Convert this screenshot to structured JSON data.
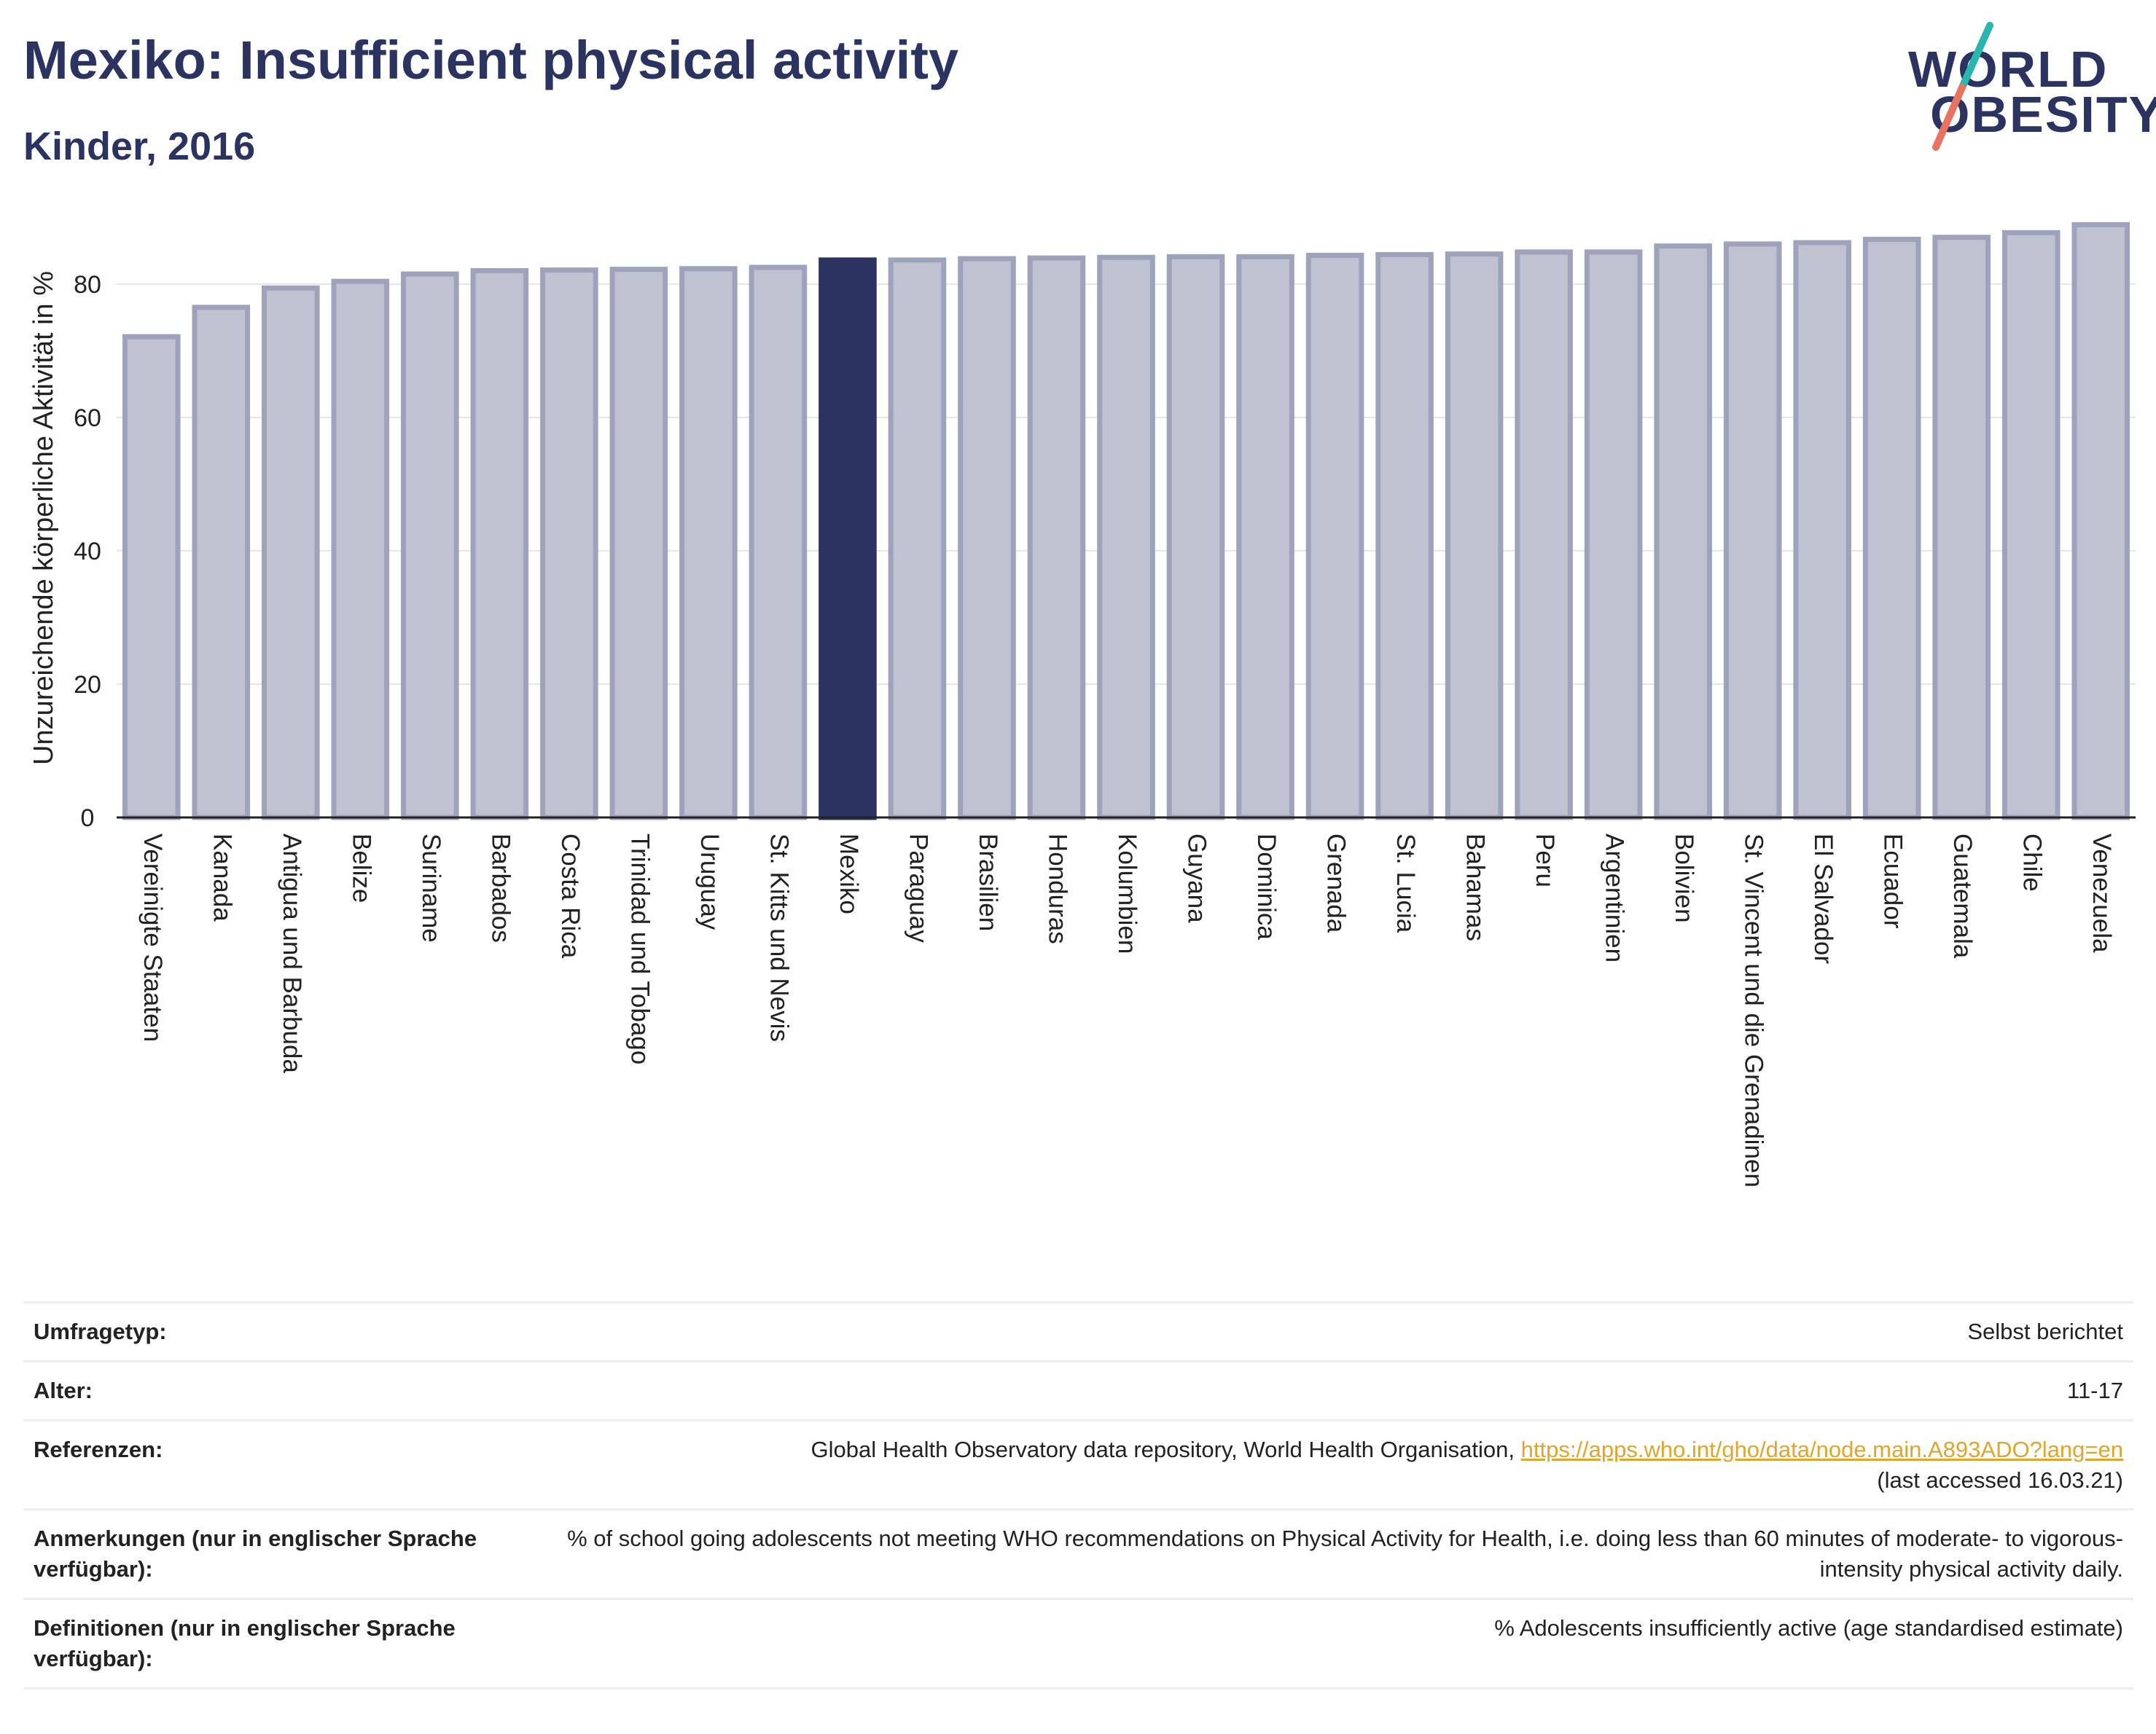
{
  "header": {
    "title": "Mexiko: Insufficient physical activity",
    "subtitle": "Kinder, 2016"
  },
  "logo": {
    "line1": "WORLD",
    "line2": "OBESITY",
    "colors": {
      "text": "#2b3461",
      "slash_top": "#2bb5b0",
      "slash_bottom": "#e8735e"
    }
  },
  "colors": {
    "bar": "#bfc2d0",
    "bar_outline": "#9ea2bb",
    "highlight": "#2b3461",
    "axis_text": "#222222",
    "grid": "#e5e5e5"
  },
  "chart_data": {
    "type": "bar",
    "title": "Mexiko: Insufficient physical activity",
    "subtitle": "Kinder, 2016",
    "xlabel": "",
    "ylabel": "Unzureichende körperliche Aktivität in %",
    "ylim": [
      0,
      92
    ],
    "yticks": [
      0,
      20,
      40,
      60,
      80
    ],
    "grid": true,
    "highlight": "Mexiko",
    "categories": [
      "Vereinigte Staaten",
      "Kanada",
      "Antigua und Barbuda",
      "Belize",
      "Suriname",
      "Barbados",
      "Costa Rica",
      "Trinidad und Tobago",
      "Uruguay",
      "St. Kitts und Nevis",
      "Mexiko",
      "Paraguay",
      "Brasilien",
      "Honduras",
      "Kolumbien",
      "Guyana",
      "Dominica",
      "Grenada",
      "St. Lucia",
      "Bahamas",
      "Peru",
      "Argentinien",
      "Bolivien",
      "St. Vincent und die Grenadinen",
      "El Salvador",
      "Ecuador",
      "Guatemala",
      "Chile",
      "Venezuela"
    ],
    "values": [
      72.1,
      76.5,
      79.4,
      80.4,
      81.5,
      82.0,
      82.1,
      82.2,
      82.3,
      82.5,
      83.6,
      83.6,
      83.8,
      83.9,
      84.0,
      84.1,
      84.1,
      84.3,
      84.4,
      84.5,
      84.8,
      84.8,
      85.7,
      86.0,
      86.2,
      86.7,
      87.0,
      87.7,
      88.9
    ]
  },
  "info": {
    "rows": [
      {
        "key": "Umfragetyp:",
        "value": "Selbst berichtet"
      },
      {
        "key": "Alter:",
        "value": "11-17"
      },
      {
        "key": "Referenzen:",
        "value": "Global Health Observatory data repository, World Health Organisation,",
        "link": "https://apps.who.int/gho/data/node.main.A893ADO?lang=en",
        "value2": "(last accessed 16.03.21)"
      },
      {
        "key": "Anmerkungen (nur in englischer Sprache verfügbar):",
        "value": "% of school going adolescents not meeting WHO recommendations on Physical Activity for Health, i.e. doing less than 60 minutes of moderate- to vigorous-intensity physical activity daily."
      },
      {
        "key": "Definitionen (nur in englischer Sprache verfügbar):",
        "value": "% Adolescents insufficiently active (age standardised estimate)"
      }
    ]
  }
}
